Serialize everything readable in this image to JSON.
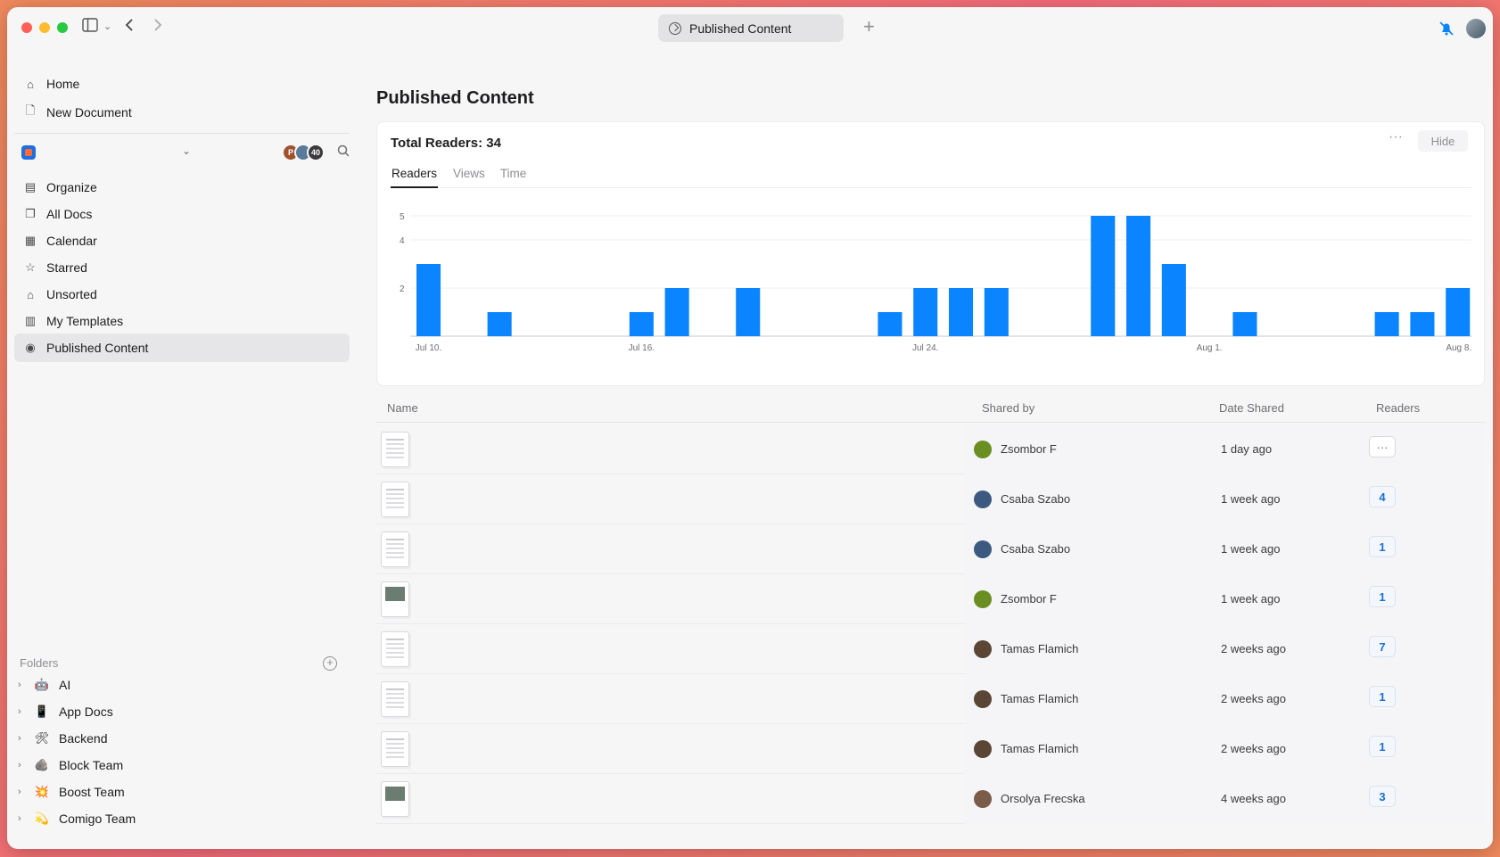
{
  "titlebar": {
    "tab_title": "Published Content",
    "new_tab_label": "+"
  },
  "sidebar": {
    "top_items": [
      {
        "label": "Home",
        "icon": "home-icon"
      },
      {
        "label": "New Document",
        "icon": "new-document-icon"
      }
    ],
    "workspace": {
      "avatars": [
        {
          "label": "P",
          "color": "#a0522d"
        },
        {
          "label": "",
          "color": "#5a7a9a"
        },
        {
          "label": "40",
          "color": "#3a3a3c"
        }
      ]
    },
    "nav_items": [
      {
        "label": "Organize",
        "icon": "organize-icon"
      },
      {
        "label": "All Docs",
        "icon": "all-docs-icon"
      },
      {
        "label": "Calendar",
        "icon": "calendar-icon"
      },
      {
        "label": "Starred",
        "icon": "star-icon"
      },
      {
        "label": "Unsorted",
        "icon": "inbox-icon"
      },
      {
        "label": "My Templates",
        "icon": "templates-icon"
      },
      {
        "label": "Published Content",
        "icon": "published-icon",
        "active": true
      }
    ],
    "folders_title": "Folders",
    "folders": [
      {
        "label": "AI",
        "emoji": "🤖"
      },
      {
        "label": "App Docs",
        "emoji": "📱"
      },
      {
        "label": "Backend",
        "emoji": "🛠"
      },
      {
        "label": "Block Team",
        "emoji": "🪨"
      },
      {
        "label": "Boost Team",
        "emoji": "💥"
      },
      {
        "label": "Comigo Team",
        "emoji": "💫"
      }
    ]
  },
  "main": {
    "title": "Published Content",
    "card": {
      "title": "Total Readers: 34",
      "hide_label": "Hide",
      "more_label": "···",
      "tabs": [
        "Readers",
        "Views",
        "Time"
      ],
      "active_tab": "Readers"
    },
    "table": {
      "columns": [
        "Name",
        "Shared by",
        "Date Shared",
        "Readers"
      ],
      "rows": [
        {
          "sharer": "Zsombor F",
          "date": "1 day ago",
          "readers": "",
          "avatar_color": "#6b8e23",
          "thumb": "doc"
        },
        {
          "sharer": "Csaba Szabo",
          "date": "1 week ago",
          "readers": "4",
          "avatar_color": "#3c5a80",
          "thumb": "doc"
        },
        {
          "sharer": "Csaba Szabo",
          "date": "1 week ago",
          "readers": "1",
          "avatar_color": "#3c5a80",
          "thumb": "doc"
        },
        {
          "sharer": "Zsombor F",
          "date": "1 week ago",
          "readers": "1",
          "avatar_color": "#6b8e23",
          "thumb": "img"
        },
        {
          "sharer": "Tamas Flamich",
          "date": "2 weeks ago",
          "readers": "7",
          "avatar_color": "#5b4636",
          "thumb": "doc"
        },
        {
          "sharer": "Tamas Flamich",
          "date": "2 weeks ago",
          "readers": "1",
          "avatar_color": "#5b4636",
          "thumb": "doc"
        },
        {
          "sharer": "Tamas Flamich",
          "date": "2 weeks ago",
          "readers": "1",
          "avatar_color": "#5b4636",
          "thumb": "doc"
        },
        {
          "sharer": "Orsolya Frecska",
          "date": "4 weeks ago",
          "readers": "3",
          "avatar_color": "#7a5c48",
          "thumb": "img"
        }
      ]
    }
  },
  "chart_data": {
    "type": "bar",
    "title": "",
    "xlabel": "",
    "ylabel": "",
    "ylim": [
      0,
      5
    ],
    "yticks": [
      2,
      4,
      5
    ],
    "grid": true,
    "bar_color": "#0a84ff",
    "x_tick_labels": [
      {
        "label": "Jul 10.",
        "day_index": 0
      },
      {
        "label": "Jul 16.",
        "day_index": 6
      },
      {
        "label": "Jul 24.",
        "day_index": 14
      },
      {
        "label": "Aug 1.",
        "day_index": 22
      },
      {
        "label": "Aug 8.",
        "day_index": 29
      }
    ],
    "day_count": 30,
    "series": [
      {
        "values": [
          3,
          0,
          1,
          0,
          0,
          0,
          1,
          2,
          0,
          2,
          0,
          0,
          0,
          1,
          2,
          2,
          2,
          0,
          0,
          5,
          5,
          3,
          0,
          1,
          0,
          0,
          0,
          1,
          1,
          2
        ]
      }
    ]
  }
}
